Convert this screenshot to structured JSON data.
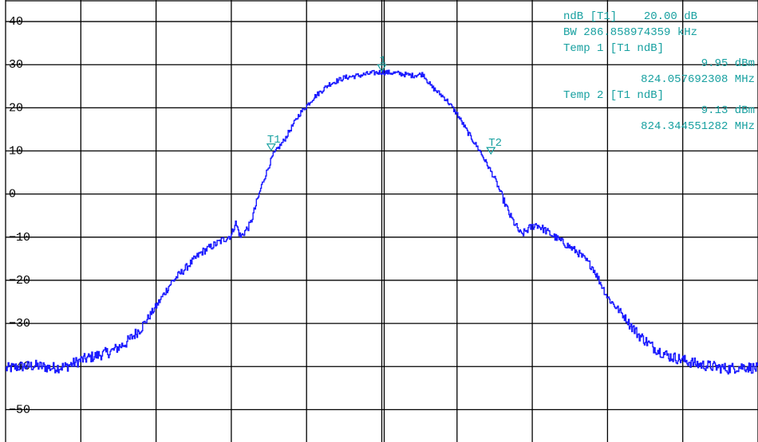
{
  "chart_data": {
    "type": "line",
    "title": "",
    "xlabel": "",
    "ylabel": "",
    "x_range": [
      0,
      10
    ],
    "ylim": [
      -57.5,
      45
    ],
    "grid": true,
    "y_ticks": [
      40,
      30,
      20,
      10,
      0,
      -10,
      -20,
      -30,
      -40,
      -50
    ],
    "y_tick_labels": [
      "40",
      "30",
      "20",
      "10",
      "0",
      "−10",
      "−20",
      "−30",
      "−40",
      "−50"
    ],
    "series": [
      {
        "color": "#1a1aff",
        "points": [
          [
            0.0,
            -40.5
          ],
          [
            0.2,
            -40.0
          ],
          [
            0.4,
            -39.8
          ],
          [
            0.6,
            -40.3
          ],
          [
            0.8,
            -40.0
          ],
          [
            1.0,
            -38.5
          ],
          [
            1.2,
            -37.5
          ],
          [
            1.4,
            -36.5
          ],
          [
            1.6,
            -34.5
          ],
          [
            1.8,
            -31.0
          ],
          [
            2.0,
            -26.0
          ],
          [
            2.2,
            -20.5
          ],
          [
            2.4,
            -17.0
          ],
          [
            2.6,
            -13.5
          ],
          [
            2.8,
            -11.5
          ],
          [
            3.0,
            -9.5
          ],
          [
            3.05,
            -6.5
          ],
          [
            3.12,
            -10.0
          ],
          [
            3.25,
            -7.0
          ],
          [
            3.4,
            2.0
          ],
          [
            3.55,
            9.0
          ],
          [
            3.7,
            12.5
          ],
          [
            3.9,
            18.5
          ],
          [
            4.1,
            22.5
          ],
          [
            4.3,
            25.5
          ],
          [
            4.5,
            27.0
          ],
          [
            4.7,
            27.5
          ],
          [
            4.85,
            28.0
          ],
          [
            5.0,
            28.3
          ],
          [
            5.2,
            28.0
          ],
          [
            5.4,
            27.5
          ],
          [
            5.55,
            27.8
          ],
          [
            5.65,
            25.0
          ],
          [
            5.85,
            22.0
          ],
          [
            6.0,
            18.5
          ],
          [
            6.15,
            14.0
          ],
          [
            6.3,
            10.0
          ],
          [
            6.5,
            3.5
          ],
          [
            6.7,
            -5.0
          ],
          [
            6.85,
            -9.5
          ],
          [
            6.95,
            -8.0
          ],
          [
            7.05,
            -7.0
          ],
          [
            7.3,
            -10.0
          ],
          [
            7.6,
            -13.5
          ],
          [
            7.8,
            -17.0
          ],
          [
            8.0,
            -24.0
          ],
          [
            8.2,
            -28.0
          ],
          [
            8.4,
            -32.5
          ],
          [
            8.6,
            -35.5
          ],
          [
            8.8,
            -37.5
          ],
          [
            9.0,
            -38.5
          ],
          [
            9.2,
            -39.5
          ],
          [
            9.4,
            -40.0
          ],
          [
            9.6,
            -40.5
          ],
          [
            9.8,
            -40.0
          ],
          [
            10.0,
            -40.5
          ]
        ]
      }
    ],
    "markers": [
      {
        "label": "1",
        "x": 5.0,
        "y": 28.3
      },
      {
        "label": "T1",
        "x": 3.53,
        "y": 9.95
      },
      {
        "label": "T2",
        "x": 6.45,
        "y": 9.13
      }
    ],
    "annotations": {
      "ndb_row": "ndB [T1]    20.00 dB",
      "bw_row": "BW 286.858974359 kHz",
      "temp1_row": "Temp 1 [T1 ndB]",
      "temp1_level": "9.95 dBm",
      "temp1_freq": "824.057692308 MHz",
      "temp2_row": "Temp 2 [T1 ndB]",
      "temp2_level": "9.13 dBm",
      "temp2_freq": "824.344551282 MHz"
    }
  }
}
